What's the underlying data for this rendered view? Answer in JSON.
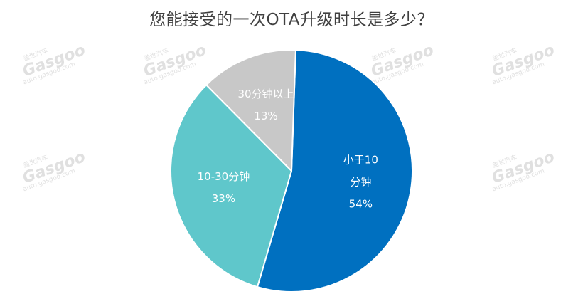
{
  "chart_data": {
    "type": "pie",
    "title": "您能接受的一次OTA升级时长是多少？",
    "slices": [
      {
        "label_lines": [
          "小于10",
          "分钟"
        ],
        "value": 54,
        "value_text": "54%",
        "color": "#0070C0",
        "text_color": "#ffffff"
      },
      {
        "label_lines": [
          "10-30分钟"
        ],
        "value": 33,
        "value_text": "33%",
        "color": "#5FC7CB",
        "text_color": "#ffffff"
      },
      {
        "label_lines": [
          "30分钟以上"
        ],
        "value": 13,
        "value_text": "13%",
        "color": "#C8C8C8",
        "text_color": "#404040"
      }
    ],
    "start_angle_deg": 2,
    "direction": "clockwise"
  },
  "watermark": {
    "logo_text": "Gasgoo",
    "cn_text": "盖世汽车",
    "url_text": "auto.gasgoo.com"
  }
}
